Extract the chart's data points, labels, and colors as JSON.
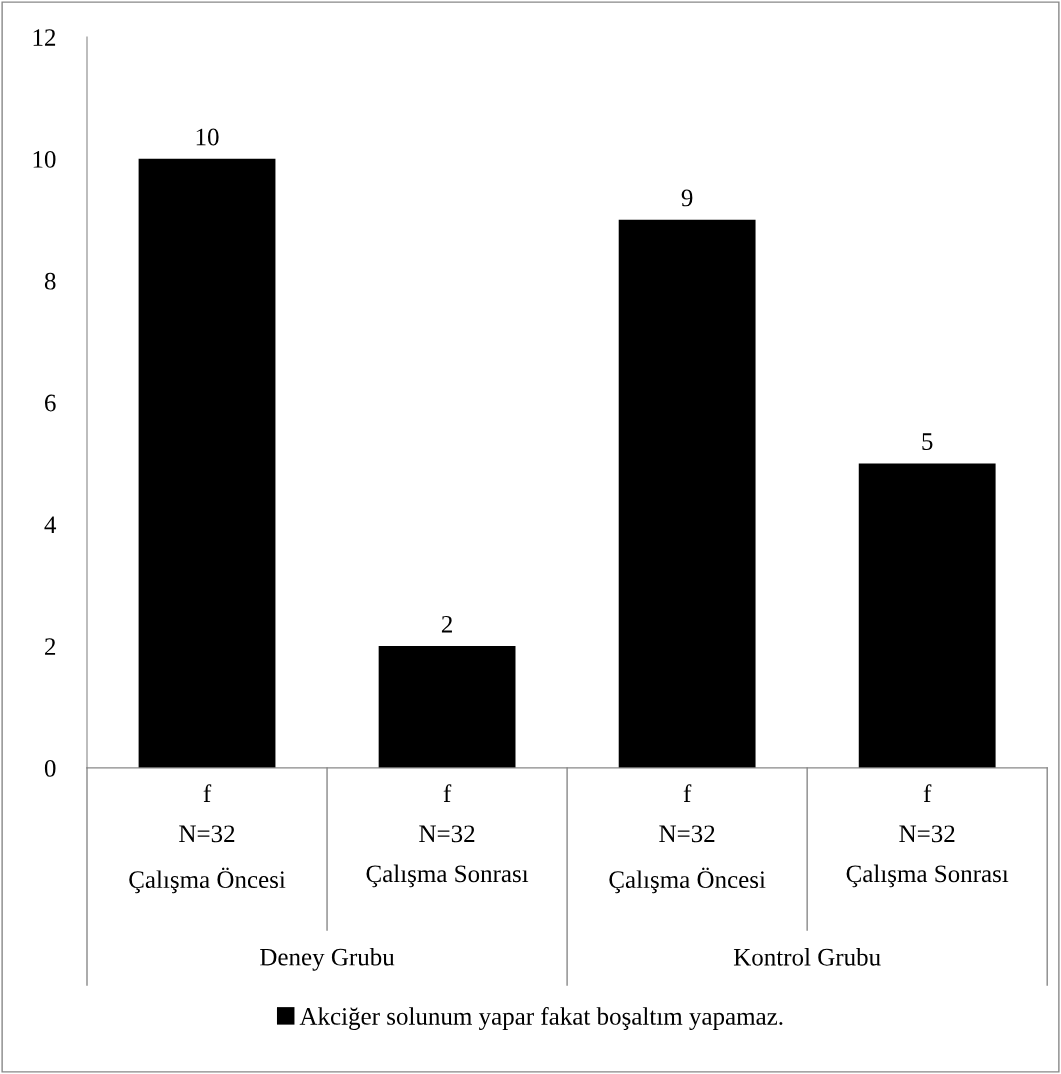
{
  "chart_data": {
    "type": "bar",
    "categories": [
      "f\nN=32\nÇalışma Öncesi",
      "f\nN=32\nÇalışma Sonrası",
      "f\nN=32\nÇalışma Öncesi",
      "f\nN=32\nÇalışma Sonrası"
    ],
    "series": [
      {
        "name": "Akciğer solunum yapar fakat boşaltım yapamaz.",
        "color": "#000000",
        "values": [
          10,
          2,
          9,
          5
        ]
      }
    ],
    "annotations": [
      "Deney Grubu",
      "Kontrol Grubu"
    ],
    "ylim": [
      0,
      12
    ],
    "yticks": [
      0,
      2,
      4,
      6,
      8,
      10,
      12
    ],
    "data_labels": true,
    "grid": false,
    "legend": "bottom"
  }
}
